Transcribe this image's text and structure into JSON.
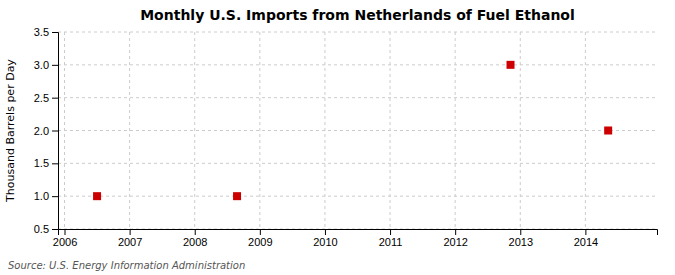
{
  "chart_data": {
    "type": "scatter",
    "title": "Monthly U.S. Imports from Netherlands of Fuel Ethanol",
    "ylabel": "Thousand Barrels per Day",
    "annotations": [
      "Source: U.S. Energy Information Administration"
    ],
    "x": [
      2006.5,
      2008.65,
      2012.85,
      2014.35
    ],
    "values": [
      1.0,
      1.0,
      3.0,
      2.0
    ],
    "color": "#CC0000",
    "marker": "square",
    "xlim": [
      2005.9,
      2015.1
    ],
    "xticks": [
      2006,
      2007,
      2008,
      2009,
      2010,
      2011,
      2012,
      2013,
      2014
    ],
    "ylim": [
      0.5,
      3.5
    ],
    "yticks": [
      0.5,
      {
        "value": 1.0,
        "label": "1.0"
      },
      1.5,
      {
        "value": 2.0,
        "label": "2.0"
      },
      2.5,
      {
        "value": 3.0,
        "label": "3.0"
      },
      3.5
    ],
    "grid": true
  }
}
